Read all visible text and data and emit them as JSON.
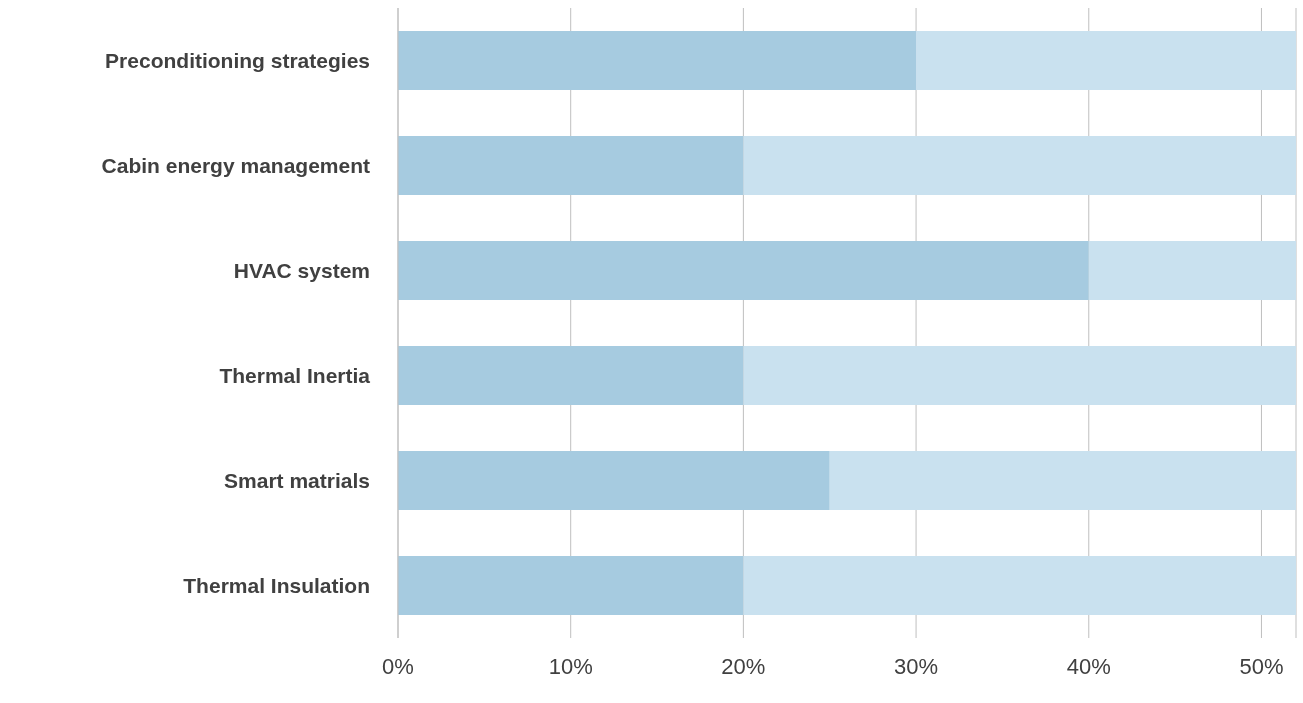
{
  "chart_data": {
    "type": "bar",
    "orientation": "horizontal",
    "stacked": true,
    "categories": [
      "Preconditioning strategies",
      "Cabin energy management",
      "HVAC system",
      "Thermal Inertia",
      "Smart matrials",
      "Thermal Insulation"
    ],
    "series": [
      {
        "color": "#a6cbe0",
        "values": [
          30,
          20,
          40,
          20,
          25,
          20
        ]
      },
      {
        "color": "#c9e1ef",
        "values": [
          22,
          32,
          12,
          32,
          27,
          32
        ]
      }
    ],
    "xlim": [
      0,
      52
    ],
    "xticks": [
      {
        "value": 0,
        "label": "0%"
      },
      {
        "value": 10,
        "label": "10%"
      },
      {
        "value": 20,
        "label": "20%"
      },
      {
        "value": 30,
        "label": "30%"
      },
      {
        "value": 40,
        "label": "40%"
      },
      {
        "value": 50,
        "label": "50%"
      }
    ],
    "grid": "x"
  }
}
